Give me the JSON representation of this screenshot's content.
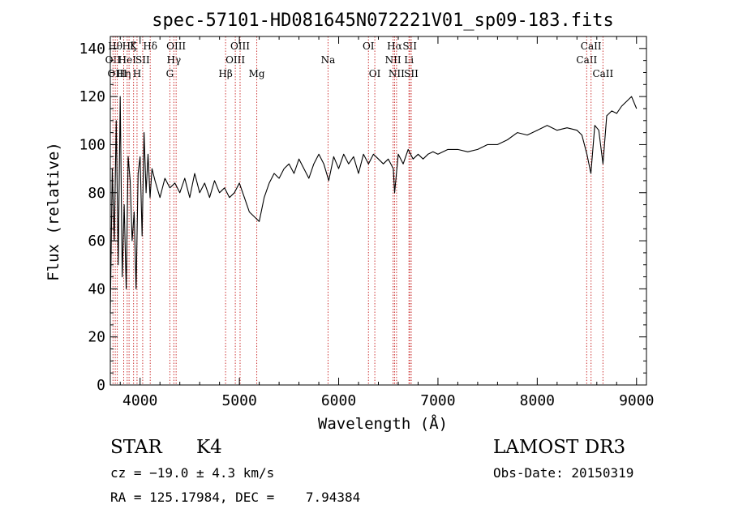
{
  "chart_data": {
    "type": "line",
    "title": "spec-57101-HD081645N072221V01_sp09-183.fits",
    "xlabel": "Wavelength (Å)",
    "ylabel": "Flux (relative)",
    "xlim": [
      3700,
      9100
    ],
    "ylim": [
      0,
      145
    ],
    "xticks": [
      4000,
      5000,
      6000,
      7000,
      8000,
      9000
    ],
    "yticks": [
      0,
      20,
      40,
      60,
      80,
      100,
      120,
      140
    ],
    "series": [
      {
        "name": "flux",
        "x": [
          3700,
          3720,
          3740,
          3760,
          3780,
          3800,
          3820,
          3840,
          3860,
          3880,
          3900,
          3920,
          3940,
          3960,
          3980,
          4000,
          4020,
          4040,
          4060,
          4080,
          4100,
          4120,
          4150,
          4200,
          4250,
          4300,
          4350,
          4400,
          4450,
          4500,
          4550,
          4600,
          4650,
          4700,
          4750,
          4800,
          4850,
          4900,
          4950,
          5000,
          5050,
          5100,
          5150,
          5200,
          5250,
          5300,
          5350,
          5400,
          5450,
          5500,
          5550,
          5600,
          5650,
          5700,
          5750,
          5800,
          5850,
          5900,
          5950,
          6000,
          6050,
          6100,
          6150,
          6200,
          6250,
          6300,
          6350,
          6400,
          6450,
          6500,
          6550,
          6563,
          6600,
          6650,
          6700,
          6750,
          6800,
          6850,
          6900,
          6950,
          7000,
          7100,
          7200,
          7300,
          7400,
          7500,
          7600,
          7700,
          7800,
          7900,
          8000,
          8100,
          8200,
          8300,
          8400,
          8450,
          8500,
          8540,
          8580,
          8620,
          8662,
          8700,
          8750,
          8800,
          8850,
          8900,
          8950,
          9000
        ],
        "values": [
          30,
          90,
          60,
          110,
          50,
          120,
          45,
          75,
          40,
          95,
          85,
          60,
          72,
          40,
          88,
          95,
          62,
          105,
          80,
          96,
          78,
          90,
          85,
          78,
          86,
          82,
          84,
          80,
          86,
          78,
          88,
          80,
          84,
          78,
          85,
          80,
          82,
          78,
          80,
          84,
          78,
          72,
          70,
          68,
          78,
          84,
          88,
          86,
          90,
          92,
          88,
          94,
          90,
          86,
          92,
          96,
          92,
          85,
          95,
          90,
          96,
          92,
          95,
          88,
          96,
          92,
          96,
          94,
          92,
          94,
          90,
          80,
          96,
          92,
          98,
          94,
          96,
          94,
          96,
          97,
          96,
          98,
          98,
          97,
          98,
          100,
          100,
          102,
          105,
          104,
          106,
          108,
          106,
          107,
          106,
          104,
          96,
          88,
          108,
          106,
          92,
          112,
          114,
          113,
          116,
          118,
          120,
          115
        ]
      }
    ],
    "lines": [
      {
        "wave": 3727,
        "label": "OII",
        "row": 1
      },
      {
        "wave": 3750,
        "label": "Hθ",
        "row": 0
      },
      {
        "wave": 3770,
        "label": "OIII",
        "row": 2
      },
      {
        "wave": 3835,
        "label": "Hη",
        "row": 2
      },
      {
        "wave": 3870,
        "label": "HeI",
        "row": 1
      },
      {
        "wave": 3889,
        "label": "Hζ",
        "row": 0
      },
      {
        "wave": 3934,
        "label": "K",
        "row": 0
      },
      {
        "wave": 3969,
        "label": "H",
        "row": 2
      },
      {
        "wave": 4026,
        "label": "SII",
        "row": 1
      },
      {
        "wave": 4102,
        "label": "Hδ",
        "row": 0
      },
      {
        "wave": 4300,
        "label": "G",
        "row": 2
      },
      {
        "wave": 4340,
        "label": "Hγ",
        "row": 1
      },
      {
        "wave": 4363,
        "label": "OIII",
        "row": 0
      },
      {
        "wave": 4861,
        "label": "Hβ",
        "row": 2
      },
      {
        "wave": 4959,
        "label": "OIII",
        "row": 1
      },
      {
        "wave": 5007,
        "label": "OIII",
        "row": 0
      },
      {
        "wave": 5175,
        "label": "Mg",
        "row": 2
      },
      {
        "wave": 5893,
        "label": "Na",
        "row": 1
      },
      {
        "wave": 6300,
        "label": "OI",
        "row": 0
      },
      {
        "wave": 6364,
        "label": "OI",
        "row": 2
      },
      {
        "wave": 6548,
        "label": "NII",
        "row": 1
      },
      {
        "wave": 6563,
        "label": "Hα",
        "row": 0
      },
      {
        "wave": 6583,
        "label": "NII",
        "row": 2
      },
      {
        "wave": 6708,
        "label": "Li",
        "row": 1
      },
      {
        "wave": 6716,
        "label": "SII",
        "row": 0
      },
      {
        "wave": 6731,
        "label": "SII",
        "row": 2
      },
      {
        "wave": 8498,
        "label": "CaII",
        "row": 1
      },
      {
        "wave": 8542,
        "label": "CaII",
        "row": 0
      },
      {
        "wave": 8662,
        "label": "CaII",
        "row": 2
      }
    ]
  },
  "info": {
    "class": "STAR",
    "subclass": "K4",
    "cz": "cz = −19.0 ± 4.3 km/s",
    "coords": "RA = 125.17984, DEC =    7.94384",
    "survey": "LAMOST DR3",
    "obs_date": "Obs-Date: 20150319"
  }
}
